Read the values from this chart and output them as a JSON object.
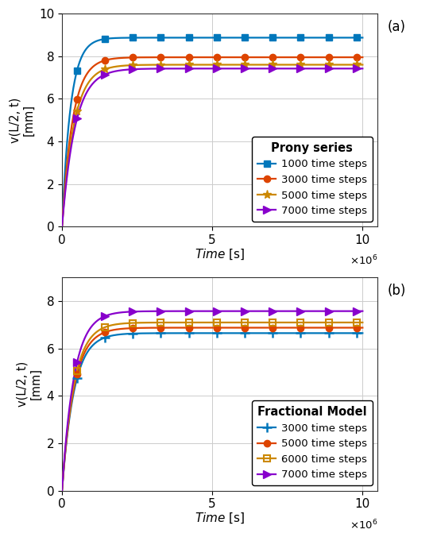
{
  "subplot_a": {
    "title": "Prony series",
    "ylabel_line1": "v(L/2, t)",
    "ylabel_line2": "[mm]",
    "xlabel": "Time [s]",
    "xlim": [
      0,
      10500000.0
    ],
    "ylim": [
      0,
      10
    ],
    "yticks": [
      0,
      2,
      4,
      6,
      8,
      10
    ],
    "xticks": [
      0,
      5000000.0,
      10000000.0
    ],
    "xticklabels": [
      "0",
      "5",
      "10"
    ],
    "series": [
      {
        "label": "1000 time steps",
        "color": "#0077bb",
        "marker": "s",
        "marker_face": "filled",
        "final_value": 8.87,
        "rise_k": 3.5e-06
      },
      {
        "label": "3000 time steps",
        "color": "#dd4400",
        "marker": "o",
        "marker_face": "filled",
        "final_value": 7.95,
        "rise_k": 2.8e-06
      },
      {
        "label": "5000 time steps",
        "color": "#cc8800",
        "marker": "*",
        "marker_face": "filled",
        "final_value": 7.6,
        "rise_k": 2.5e-06
      },
      {
        "label": "7000 time steps",
        "color": "#8800cc",
        "marker": ">",
        "marker_face": "filled",
        "final_value": 7.42,
        "rise_k": 2.3e-06
      }
    ]
  },
  "subplot_b": {
    "title": "Fractional Model",
    "ylabel_line1": "v(L/2, t)",
    "ylabel_line2": "[mm]",
    "xlabel": "Time [s]",
    "xlim": [
      0,
      10500000.0
    ],
    "ylim": [
      0,
      9
    ],
    "yticks": [
      0,
      2,
      4,
      6,
      8
    ],
    "xticks": [
      0,
      5000000.0,
      10000000.0
    ],
    "xticklabels": [
      "0",
      "5",
      "10"
    ],
    "series": [
      {
        "label": "3000 time steps",
        "color": "#0077bb",
        "marker": "+",
        "marker_face": "none",
        "final_value": 6.65,
        "rise_k": 2.5e-06
      },
      {
        "label": "5000 time steps",
        "color": "#dd4400",
        "marker": "o",
        "marker_face": "filled",
        "final_value": 6.88,
        "rise_k": 2.5e-06
      },
      {
        "label": "6000 time steps",
        "color": "#cc8800",
        "marker": "s",
        "marker_face": "none",
        "final_value": 7.1,
        "rise_k": 2.5e-06
      },
      {
        "label": "7000 time steps",
        "color": "#8800cc",
        "marker": ">",
        "marker_face": "filled",
        "final_value": 7.58,
        "rise_k": 2.5e-06
      }
    ]
  },
  "figure_bg": "#ffffff",
  "axes_bg": "#ffffff",
  "grid_color": "#cccccc",
  "n_markers": 11,
  "marker_t_start": 500000.0,
  "marker_t_end": 9800000.0
}
